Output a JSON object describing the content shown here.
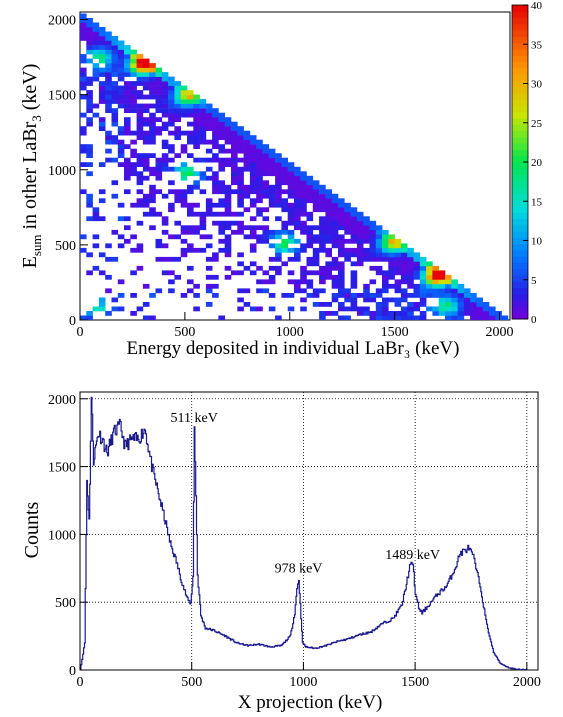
{
  "chart_data": [
    {
      "type": "heatmap",
      "title": "",
      "xlabel": "Energy deposited in individual LaBr₃ (keV)",
      "ylabel_main": "E",
      "ylabel_sub": "sum",
      "ylabel_rest": " in other LaBr",
      "ylabel_sub2": "3",
      "ylabel_tail": " (keV)",
      "xlim": [
        0,
        2050
      ],
      "ylim": [
        0,
        2050
      ],
      "x_ticks": [
        0,
        500,
        1000,
        1500,
        2000
      ],
      "y_ticks": [
        0,
        500,
        1000,
        1500,
        2000
      ],
      "colorbar": {
        "min": 0,
        "max": 40,
        "ticks": [
          0,
          5,
          10,
          15,
          20,
          25,
          30,
          35,
          40
        ]
      },
      "diagonal_band": {
        "x_start": 40,
        "x_end": 2000,
        "sum_energy": 2040
      },
      "hot_spots": [
        {
          "x": 300,
          "y": 1700,
          "intensity": 40
        },
        {
          "x": 1700,
          "y": 290,
          "intensity": 40
        },
        {
          "x": 511,
          "y": 1489,
          "intensity": 25
        },
        {
          "x": 1489,
          "y": 511,
          "intensity": 25
        },
        {
          "x": 978,
          "y": 511,
          "intensity": 18
        },
        {
          "x": 511,
          "y": 978,
          "intensity": 18
        },
        {
          "x": 100,
          "y": 1750,
          "intensity": 15
        },
        {
          "x": 1750,
          "y": 100,
          "intensity": 15
        },
        {
          "x": 80,
          "y": 80,
          "intensity": 12
        }
      ]
    },
    {
      "type": "line",
      "title": "",
      "xlabel": "X projection (keV)",
      "ylabel": "Counts",
      "xlim": [
        0,
        2050
      ],
      "ylim": [
        0,
        2050
      ],
      "x_ticks": [
        0,
        500,
        1000,
        1500,
        2000
      ],
      "y_ticks": [
        0,
        500,
        1000,
        1500,
        2000
      ],
      "grid": true,
      "color": "#1a1a8c",
      "annotations": [
        {
          "text": "511 keV",
          "x": 511,
          "y": 1830
        },
        {
          "text": "978 keV",
          "x": 978,
          "y": 720
        },
        {
          "text": "1489 keV",
          "x": 1489,
          "y": 820
        }
      ],
      "x": [
        0,
        20,
        30,
        40,
        50,
        60,
        70,
        80,
        100,
        120,
        150,
        180,
        200,
        230,
        260,
        290,
        320,
        350,
        380,
        400,
        430,
        460,
        480,
        495,
        505,
        511,
        518,
        525,
        540,
        560,
        600,
        650,
        700,
        750,
        800,
        850,
        900,
        940,
        960,
        970,
        978,
        985,
        995,
        1010,
        1050,
        1100,
        1150,
        1200,
        1250,
        1300,
        1350,
        1400,
        1440,
        1460,
        1475,
        1489,
        1500,
        1515,
        1530,
        1560,
        1600,
        1640,
        1680,
        1700,
        1720,
        1740,
        1760,
        1790,
        1820,
        1850,
        1880,
        1920,
        1960,
        2000
      ],
      "y": [
        0,
        200,
        1400,
        1100,
        2000,
        1550,
        1650,
        1750,
        1700,
        1600,
        1750,
        1800,
        1650,
        1700,
        1700,
        1780,
        1500,
        1300,
        1100,
        950,
        800,
        620,
        520,
        490,
        700,
        1780,
        1300,
        700,
        400,
        310,
        290,
        250,
        200,
        180,
        190,
        170,
        180,
        250,
        420,
        600,
        670,
        480,
        200,
        170,
        160,
        180,
        210,
        230,
        260,
        280,
        340,
        380,
        480,
        640,
        760,
        790,
        560,
        460,
        420,
        480,
        560,
        620,
        760,
        860,
        880,
        900,
        830,
        620,
        330,
        130,
        50,
        15,
        5,
        0
      ]
    }
  ]
}
